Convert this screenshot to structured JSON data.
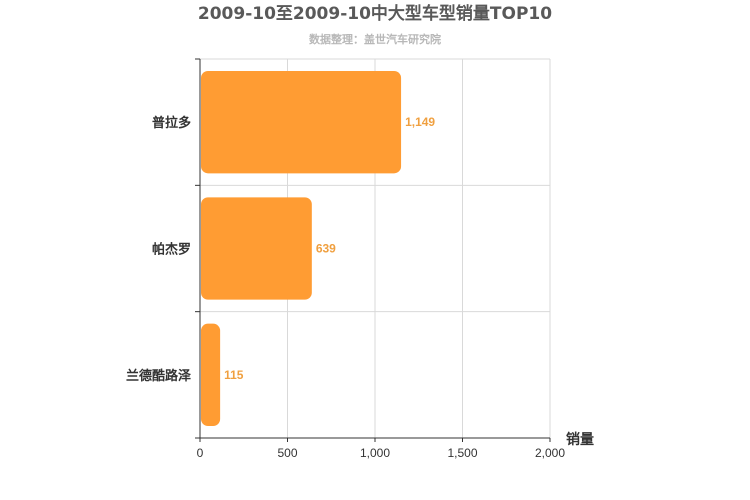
{
  "chart_data": {
    "type": "bar",
    "orientation": "horizontal",
    "title": "2009-10至2009-10中大型车型销量TOP10",
    "subtitle": "数据整理：盖世汽车研究院",
    "categories": [
      "普拉多",
      "帕杰罗",
      "兰德酷路泽"
    ],
    "values": [
      1149,
      639,
      115
    ],
    "value_labels": [
      "1,149",
      "639",
      "115"
    ],
    "xlabel": "销量",
    "ylabel": "",
    "xlim": [
      0,
      2000
    ],
    "xticks": [
      0,
      500,
      1000,
      1500,
      2000
    ],
    "xtick_labels": [
      "0",
      "500",
      "1,000",
      "1,500",
      "2,000"
    ],
    "grid": true,
    "legend": "none",
    "colors": {
      "bar": "#ff9c33",
      "label": "#f0a040",
      "grid": "#d9d9d9",
      "axis": "#333333"
    }
  }
}
